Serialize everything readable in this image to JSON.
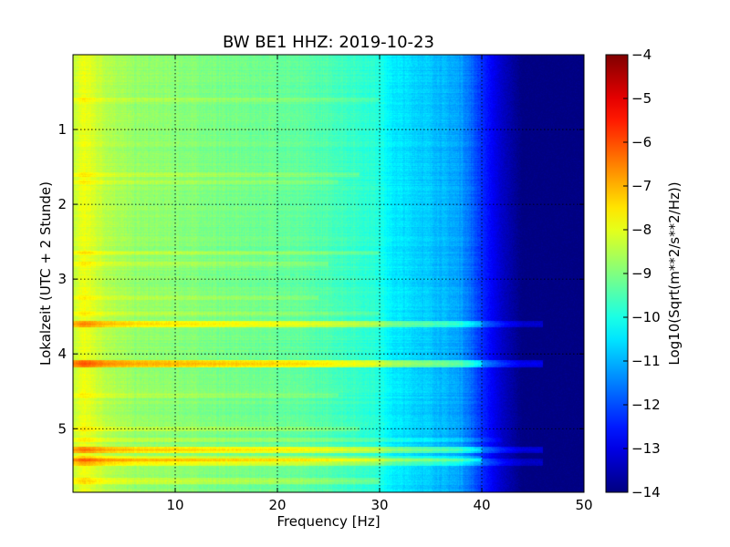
{
  "chart_data": {
    "type": "heatmap",
    "title": "BW BE1 HHZ: 2019-10-23",
    "xlabel": "Frequency [Hz]",
    "ylabel": "Lokalzeit (UTC + 2 Stunde)",
    "xlim": [
      0,
      50
    ],
    "ylim": [
      5.85,
      0
    ],
    "x_ticks": [
      10,
      20,
      30,
      40,
      50
    ],
    "y_ticks": [
      1,
      2,
      3,
      4,
      5
    ],
    "grid": true,
    "colorbar": {
      "label": "Log10(Sqrt(m**2/s**2/Hz))",
      "range": [
        -14,
        -4
      ],
      "ticks": [
        -4,
        -5,
        -6,
        -7,
        -8,
        -9,
        -10,
        -11,
        -12,
        -13,
        -14
      ],
      "colormap": "jet"
    },
    "spectral_profile": {
      "frequency_hz": [
        0,
        1,
        3,
        6,
        10,
        15,
        20,
        25,
        30,
        31,
        35,
        38,
        40,
        42,
        44,
        50
      ],
      "log10_amplitude": [
        -8.4,
        -7.9,
        -8.4,
        -8.8,
        -8.9,
        -9.1,
        -9.2,
        -9.5,
        -9.9,
        -10.4,
        -10.8,
        -11.2,
        -12.3,
        -13.3,
        -14,
        -14
      ]
    },
    "bands": [
      {
        "time_h": 4.13,
        "freq_end_hz": 46,
        "delta": 1.9,
        "width_h": 0.05
      },
      {
        "time_h": 3.6,
        "freq_end_hz": 46,
        "delta": 1.4,
        "width_h": 0.04
      },
      {
        "time_h": 5.28,
        "freq_end_hz": 46,
        "delta": 1.6,
        "width_h": 0.04
      },
      {
        "time_h": 5.45,
        "freq_end_hz": 46,
        "delta": 1.2,
        "width_h": 0.05
      },
      {
        "time_h": 5.4,
        "freq_end_hz": 40,
        "delta": 0.9,
        "width_h": 0.04
      },
      {
        "time_h": 0.6,
        "freq_end_hz": 30,
        "delta": 0.4,
        "width_h": 0.03
      },
      {
        "time_h": 1.6,
        "freq_end_hz": 28,
        "delta": 0.5,
        "width_h": 0.03
      },
      {
        "time_h": 1.7,
        "freq_end_hz": 26,
        "delta": 0.4,
        "width_h": 0.03
      },
      {
        "time_h": 2.65,
        "freq_end_hz": 30,
        "delta": 0.5,
        "width_h": 0.03
      },
      {
        "time_h": 2.8,
        "freq_end_hz": 25,
        "delta": 0.45,
        "width_h": 0.03
      },
      {
        "time_h": 3.25,
        "freq_end_hz": 24,
        "delta": 0.4,
        "width_h": 0.03
      },
      {
        "time_h": 3.45,
        "freq_end_hz": 30,
        "delta": 0.4,
        "width_h": 0.03
      },
      {
        "time_h": 4.55,
        "freq_end_hz": 26,
        "delta": 0.4,
        "width_h": 0.03
      },
      {
        "time_h": 5.0,
        "freq_end_hz": 28,
        "delta": 0.5,
        "width_h": 0.03
      },
      {
        "time_h": 5.15,
        "freq_end_hz": 42,
        "delta": 0.5,
        "width_h": 0.03
      },
      {
        "time_h": 5.7,
        "freq_end_hz": 30,
        "delta": 0.6,
        "width_h": 0.04
      }
    ]
  }
}
